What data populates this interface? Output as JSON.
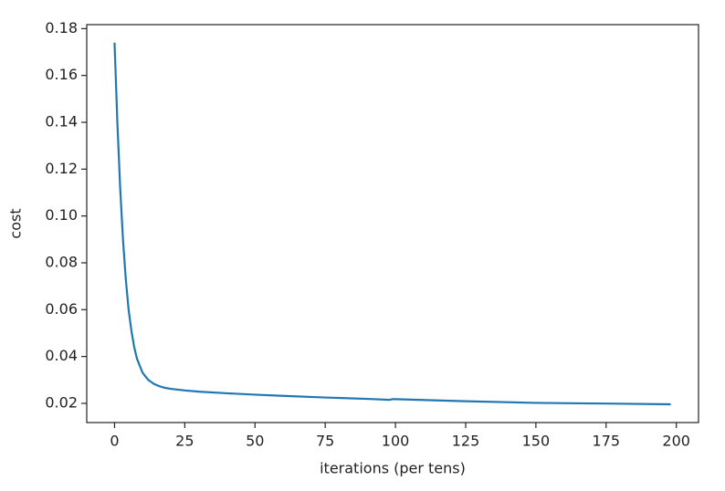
{
  "chart_data": {
    "type": "line",
    "xlabel": "iterations (per tens)",
    "ylabel": "cost",
    "x": [
      0,
      1,
      2,
      3,
      4,
      5,
      6,
      7,
      8,
      10,
      12,
      14,
      16,
      18,
      20,
      25,
      30,
      40,
      50,
      60,
      75,
      90,
      98,
      99,
      100,
      125,
      150,
      175,
      198
    ],
    "series": [
      {
        "color": "#1f77b4",
        "values": [
          0.174,
          0.14,
          0.112,
          0.09,
          0.073,
          0.06,
          0.051,
          0.044,
          0.039,
          0.033,
          0.03,
          0.0283,
          0.0273,
          0.0266,
          0.0262,
          0.0255,
          0.025,
          0.0243,
          0.0237,
          0.0232,
          0.0225,
          0.0219,
          0.0215,
          0.0218,
          0.0218,
          0.0209,
          0.0202,
          0.0199,
          0.0196
        ]
      }
    ],
    "xlim": [
      -9.9,
      207.9
    ],
    "ylim": [
      0.0118,
      0.1817
    ],
    "xticks": [
      0,
      25,
      50,
      75,
      100,
      125,
      150,
      175,
      200
    ],
    "yticks": [
      0.02,
      0.04,
      0.06,
      0.08,
      {
        "value": 0.1,
        "label": "0.10"
      },
      0.12,
      0.14,
      0.16,
      0.18
    ],
    "grid": false
  }
}
